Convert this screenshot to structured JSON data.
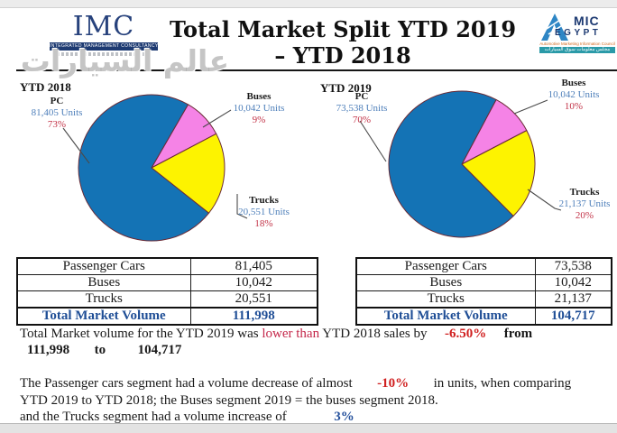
{
  "header": {
    "imc": {
      "name": "IMC",
      "subtitle": "INTEGRATED MANAGEMENT CONSULTANCY"
    },
    "title_line1": "Total Market Split YTD 2019",
    "title_line2": "– YTD 2018",
    "amic": {
      "mic": "MIC",
      "egypt": "EGYPT",
      "caption": "Automotive Marketing Information Council",
      "caption_ar": "مجلس معلومات سوق السيارات"
    }
  },
  "watermark": "عالم السيارات",
  "chart_data": [
    {
      "type": "pie",
      "title": "YTD 2018",
      "categories": [
        "PC",
        "Buses",
        "Trucks"
      ],
      "values": [
        81405,
        10042,
        20551
      ],
      "percent_labels": [
        "73%",
        "9%",
        "18%"
      ],
      "unit_labels": [
        "81,405  Units",
        "10,042 Units",
        "20,551 Units"
      ],
      "colors": {
        "PC": "#1473b5",
        "Buses": "#f583e6",
        "Trucks": "#fdf300"
      },
      "start_angle_deg": 60,
      "draw_order": [
        "Buses",
        "Trucks",
        "PC"
      ],
      "legend": "none"
    },
    {
      "type": "pie",
      "title": "YTD 2019",
      "categories": [
        "PC",
        "Buses",
        "Trucks"
      ],
      "values": [
        73538,
        10042,
        21137
      ],
      "percent_labels": [
        "70%",
        "10%",
        "20%"
      ],
      "unit_labels": [
        "73,538  Units",
        "10,042 Units",
        "21,137 Units"
      ],
      "colors": {
        "PC": "#1473b5",
        "Buses": "#f583e6",
        "Trucks": "#fdf300"
      },
      "start_angle_deg": 62,
      "draw_order": [
        "Buses",
        "Trucks",
        "PC"
      ],
      "legend": "none"
    }
  ],
  "tables": [
    {
      "rows": [
        [
          "Passenger Cars",
          "81,405"
        ],
        [
          "Buses",
          "10,042"
        ],
        [
          "Trucks",
          "20,551"
        ]
      ],
      "total_label": "Total Market Volume",
      "total_value": "111,998"
    },
    {
      "rows": [
        [
          "Passenger Cars",
          "73,538"
        ],
        [
          "Buses",
          "10,042"
        ],
        [
          "Trucks",
          "21,137"
        ]
      ],
      "total_label": "Total Market Volume",
      "total_value": "104,717"
    }
  ],
  "summary": {
    "part1": "Total Market volume for the YTD 2019 was",
    "highlight1": "lower than",
    "part2": "YTD 2018 sales by",
    "pct": "-6.50%",
    "part3": "from",
    "from_value": "111,998",
    "to_word": "to",
    "to_value": "104,717"
  },
  "analysis": {
    "part1": "The Passenger cars segment had a volume decrease of almost",
    "pct1": "-10%",
    "part2": "in units, when comparing",
    "line2": "YTD 2019 to YTD 2018; the Buses segment 2019  = the buses segment 2018.",
    "line3": "and the Trucks segment had a volume increase of",
    "pct2": "3%"
  }
}
